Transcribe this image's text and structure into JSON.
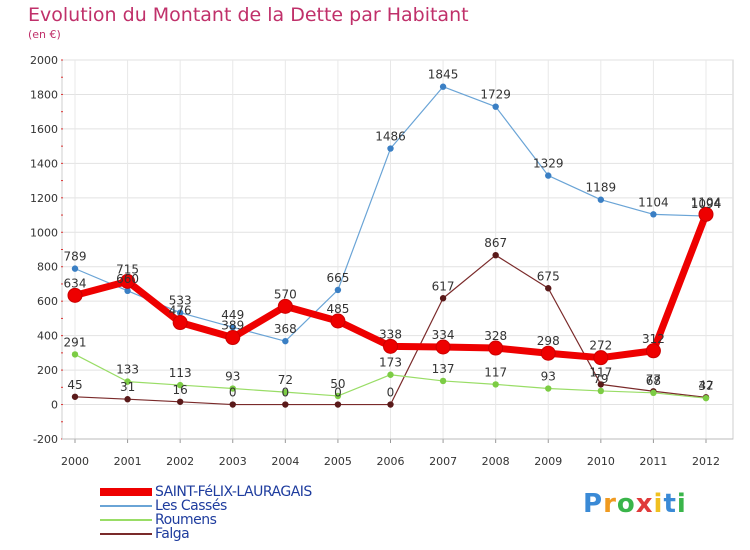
{
  "title": "Evolution du Montant de la Dette par Habitant",
  "subtitle": "(en €)",
  "chart_data": {
    "type": "line",
    "title": "Evolution du Montant de la Dette par Habitant",
    "unit": "(en €)",
    "categories": [
      "2000",
      "2001",
      "2002",
      "2003",
      "2004",
      "2005",
      "2006",
      "2007",
      "2008",
      "2009",
      "2010",
      "2011",
      "2012"
    ],
    "ylim": [
      -200,
      2000
    ],
    "yticks": [
      -200,
      0,
      200,
      400,
      600,
      800,
      1000,
      1200,
      1400,
      1600,
      1800,
      2000
    ],
    "grid": true,
    "legend_position": "bottom-left",
    "series": [
      {
        "name": "SAINT-FéLIX-LAURAGAIS",
        "color": "#ee0000",
        "values": [
          634,
          715,
          476,
          389,
          570,
          485,
          338,
          334,
          328,
          298,
          272,
          312,
          1104
        ]
      },
      {
        "name": "Les Cassés",
        "color": "#6aa4d6",
        "values": [
          789,
          660,
          533,
          449,
          368,
          665,
          1486,
          1845,
          1729,
          1329,
          1189,
          1104,
          1094
        ]
      },
      {
        "name": "Roumens",
        "color": "#99dd66",
        "values": [
          291,
          133,
          113,
          93,
          72,
          50,
          173,
          137,
          117,
          93,
          79,
          68,
          37
        ]
      },
      {
        "name": "Falga",
        "color": "#7a2a2a",
        "values": [
          45,
          31,
          16,
          0,
          0,
          0,
          0,
          617,
          867,
          675,
          117,
          77,
          42
        ]
      }
    ]
  },
  "logo": {
    "text": "Proxiti",
    "letter_colors": [
      "#3a8ad6",
      "#f09a20",
      "#3ab54a",
      "#e03a3a",
      "#f0c020",
      "#3a8ad6",
      "#3ab54a"
    ]
  }
}
